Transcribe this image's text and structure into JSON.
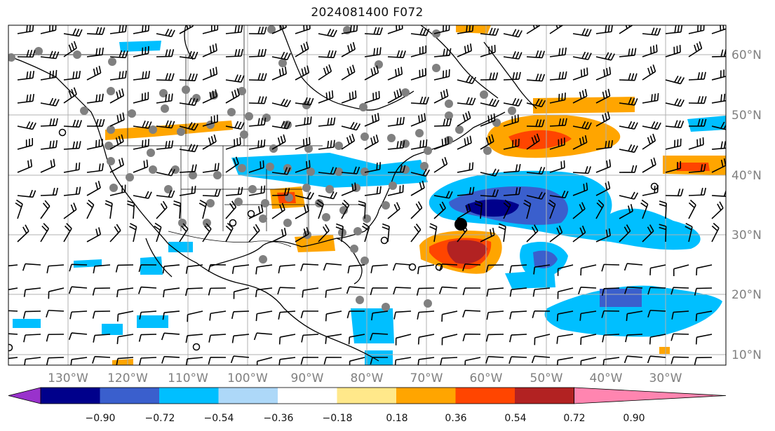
{
  "title": "2024081400 F072",
  "map": {
    "lon_range": [
      -140,
      -19
    ],
    "lat_range": [
      7,
      65
    ],
    "projection": "plate-carree",
    "gridlines": true
  },
  "longitude_labels": [
    "130°W",
    "120°W",
    "110°W",
    "100°W",
    "90°W",
    "80°W",
    "70°W",
    "60°W",
    "50°W",
    "40°W",
    "30°W"
  ],
  "longitude_values": [
    -130,
    -120,
    -110,
    -100,
    -90,
    -80,
    -70,
    -60,
    -50,
    -40,
    -30
  ],
  "latitude_labels": [
    "10°N",
    "20°N",
    "30°N",
    "40°N",
    "50°N",
    "60°N"
  ],
  "latitude_values": [
    10,
    20,
    30,
    40,
    50,
    60
  ],
  "colorbar": {
    "extend": "both",
    "colors": [
      "#9932CC",
      "#00008B",
      "#3A5FCD",
      "#00BFFF",
      "#ADD8F8",
      "#FFFFFF",
      "#FFE88A",
      "#FFA500",
      "#FF4500",
      "#B22222",
      "#FF85B0"
    ],
    "boundaries": [
      -0.9,
      -0.72,
      -0.54,
      -0.36,
      -0.18,
      0.18,
      0.36,
      0.54,
      0.72,
      0.9
    ],
    "tick_labels": [
      "−0.90",
      "−0.72",
      "−0.54",
      "−0.36",
      "−0.18",
      "0.18",
      "0.36",
      "0.54",
      "0.72",
      "0.90"
    ]
  },
  "legend_colors": {
    "station_marker": "#808080",
    "wind_barb": "#000000",
    "coastline": "#000000"
  }
}
